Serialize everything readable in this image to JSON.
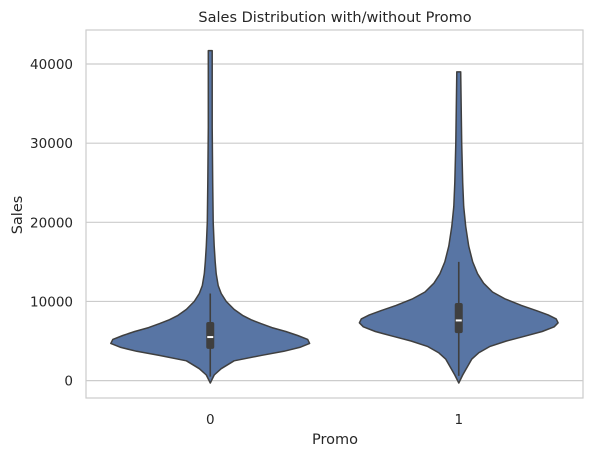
{
  "chart_data": {
    "type": "violin",
    "title": "Sales Distribution with/without Promo",
    "xlabel": "Promo",
    "ylabel": "Sales",
    "categories": [
      "0",
      "1"
    ],
    "ylim": [
      -2200,
      44300
    ],
    "yticks": [
      0,
      10000,
      20000,
      30000,
      40000
    ],
    "grid": true,
    "colors": {
      "fill": "#5875a4",
      "edge": "#3f3f3f",
      "median": "#ffffff",
      "grid": "#cccccc"
    },
    "violins": [
      {
        "category": "0",
        "profile": [
          [
            -300,
            0
          ],
          [
            700,
            4
          ],
          [
            1500,
            11
          ],
          [
            2500,
            24
          ],
          [
            3200,
            52
          ],
          [
            3700,
            74
          ],
          [
            4200,
            90
          ],
          [
            4700,
            100
          ],
          [
            5200,
            98
          ],
          [
            5700,
            88
          ],
          [
            6200,
            76
          ],
          [
            6700,
            62
          ],
          [
            7200,
            51
          ],
          [
            7700,
            41
          ],
          [
            8200,
            33
          ],
          [
            9000,
            24
          ],
          [
            10000,
            16
          ],
          [
            11000,
            11
          ],
          [
            12000,
            8
          ],
          [
            13500,
            6
          ],
          [
            15000,
            5
          ],
          [
            17000,
            4
          ],
          [
            20000,
            3
          ],
          [
            25000,
            2.5
          ],
          [
            32000,
            2
          ],
          [
            41700,
            2
          ]
        ],
        "whisker": [
          500,
          11000
        ],
        "q1": 4000,
        "q3": 7400,
        "median": 5500
      },
      {
        "category": "1",
        "profile": [
          [
            -300,
            0
          ],
          [
            700,
            4
          ],
          [
            1800,
            9
          ],
          [
            2700,
            13
          ],
          [
            3500,
            20
          ],
          [
            4300,
            31
          ],
          [
            5000,
            48
          ],
          [
            5600,
            66
          ],
          [
            6200,
            84
          ],
          [
            6800,
            96
          ],
          [
            7300,
            100
          ],
          [
            7800,
            98
          ],
          [
            8300,
            90
          ],
          [
            8800,
            79
          ],
          [
            9500,
            63
          ],
          [
            10300,
            47
          ],
          [
            11200,
            34
          ],
          [
            12300,
            25
          ],
          [
            13500,
            19
          ],
          [
            15000,
            14
          ],
          [
            17000,
            10
          ],
          [
            19500,
            7
          ],
          [
            22000,
            5
          ],
          [
            25000,
            4
          ],
          [
            30000,
            3
          ],
          [
            39000,
            2
          ]
        ],
        "whisker": [
          600,
          15000
        ],
        "q1": 6000,
        "q3": 9800,
        "median": 7600
      }
    ]
  }
}
